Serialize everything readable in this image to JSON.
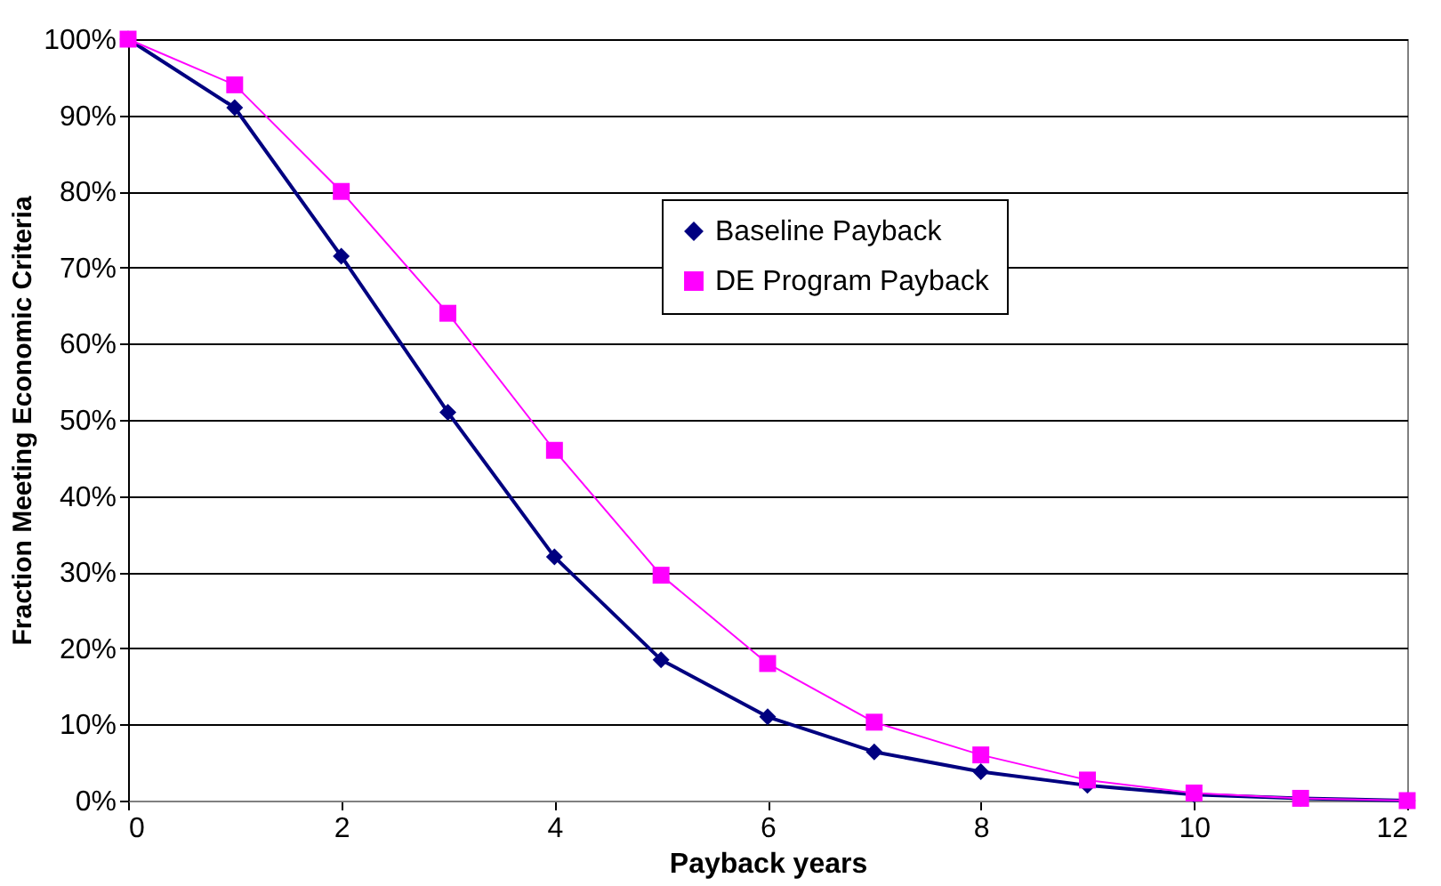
{
  "chart_data": {
    "type": "line",
    "xlabel": "Payback years",
    "ylabel": "Fraction Meeting Economic Criteria",
    "x": [
      0,
      1,
      2,
      3,
      4,
      5,
      6,
      7,
      8,
      9,
      10,
      11,
      12
    ],
    "series": [
      {
        "name": "Baseline Payback",
        "color": "#000080",
        "marker": "diamond",
        "values": [
          100,
          91,
          71.5,
          51,
          32,
          18.5,
          11,
          6.4,
          3.8,
          2,
          0.8,
          0.3,
          0
        ]
      },
      {
        "name": "DE Program Payback",
        "color": "#ff00ff",
        "marker": "square",
        "values": [
          100,
          94,
          80,
          64,
          46,
          29.6,
          18,
          10.3,
          6,
          2.7,
          1,
          0.3,
          0
        ]
      }
    ],
    "xlim": [
      0,
      12
    ],
    "xticks": [
      0,
      2,
      4,
      6,
      8,
      10,
      12
    ],
    "ylim": [
      0,
      100
    ],
    "yticks": [
      {
        "value": 0,
        "label": "0%"
      },
      {
        "value": 10,
        "label": "10%"
      },
      {
        "value": 20,
        "label": "20%"
      },
      {
        "value": 30,
        "label": "30%"
      },
      {
        "value": 40,
        "label": "40%"
      },
      {
        "value": 50,
        "label": "50%"
      },
      {
        "value": 60,
        "label": "60%"
      },
      {
        "value": 70,
        "label": "70%"
      },
      {
        "value": 80,
        "label": "80%"
      },
      {
        "value": 90,
        "label": "90%"
      },
      {
        "value": 100,
        "label": "100%"
      }
    ],
    "grid": "y",
    "legend": "top right",
    "line_style": "solid"
  }
}
